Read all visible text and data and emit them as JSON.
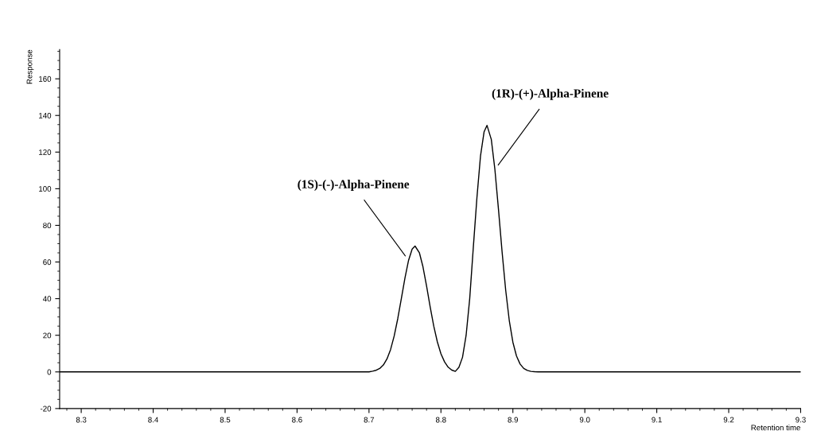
{
  "chart_data": {
    "type": "line",
    "xlabel": "Retention time",
    "ylabel": "Response",
    "xlim": [
      8.27,
      9.3
    ],
    "ylim": [
      -20,
      176
    ],
    "xticks": [
      8.3,
      8.4,
      8.5,
      8.6,
      8.7,
      8.8,
      8.9,
      {
        "value": 9.0,
        "label": "9.0"
      },
      9.1,
      9.2,
      9.3
    ],
    "yticks": [
      -20,
      0,
      20,
      40,
      60,
      80,
      100,
      120,
      140,
      160
    ],
    "grid": false,
    "legend": false,
    "marker": "none",
    "line_style": "solid",
    "series": [
      {
        "color": "#000000",
        "x": [
          8.27,
          8.7,
          8.705,
          8.71,
          8.715,
          8.72,
          8.725,
          8.73,
          8.735,
          8.74,
          8.745,
          8.75,
          8.755,
          8.76,
          8.764,
          8.77,
          8.775,
          8.78,
          8.785,
          8.79,
          8.795,
          8.8,
          8.805,
          8.81,
          8.815,
          8.82,
          8.825,
          8.83,
          8.835,
          8.84,
          8.845,
          8.85,
          8.855,
          8.86,
          8.864,
          8.87,
          8.875,
          8.88,
          8.885,
          8.89,
          8.895,
          8.9,
          8.905,
          8.91,
          8.915,
          8.92,
          8.925,
          8.93,
          8.935,
          9.3
        ],
        "values": [
          0,
          0,
          0.4,
          0.9,
          1.9,
          3.8,
          7.1,
          12.2,
          19.6,
          29.1,
          40.1,
          51.3,
          60.9,
          67.1,
          68.7,
          65.1,
          57.4,
          46.9,
          35.6,
          25.0,
          16.4,
          9.9,
          5.5,
          2.6,
          1.0,
          0.3,
          2.5,
          8,
          20,
          40,
          68,
          95,
          117.9,
          131.1,
          134.6,
          126.9,
          110.5,
          88.6,
          65.5,
          44.6,
          28.0,
          16.2,
          8.7,
          4.3,
          1.9,
          0.8,
          0.3,
          0.1,
          0,
          0
        ]
      }
    ],
    "annotations": [
      {
        "text": "(1S)-(-)-Alpha-Pinene",
        "x": 8.755,
        "y": 60.9
      },
      {
        "text": "(1R)-(+)-Alpha-Pinene",
        "x": 8.875,
        "y": 110.5
      }
    ]
  }
}
